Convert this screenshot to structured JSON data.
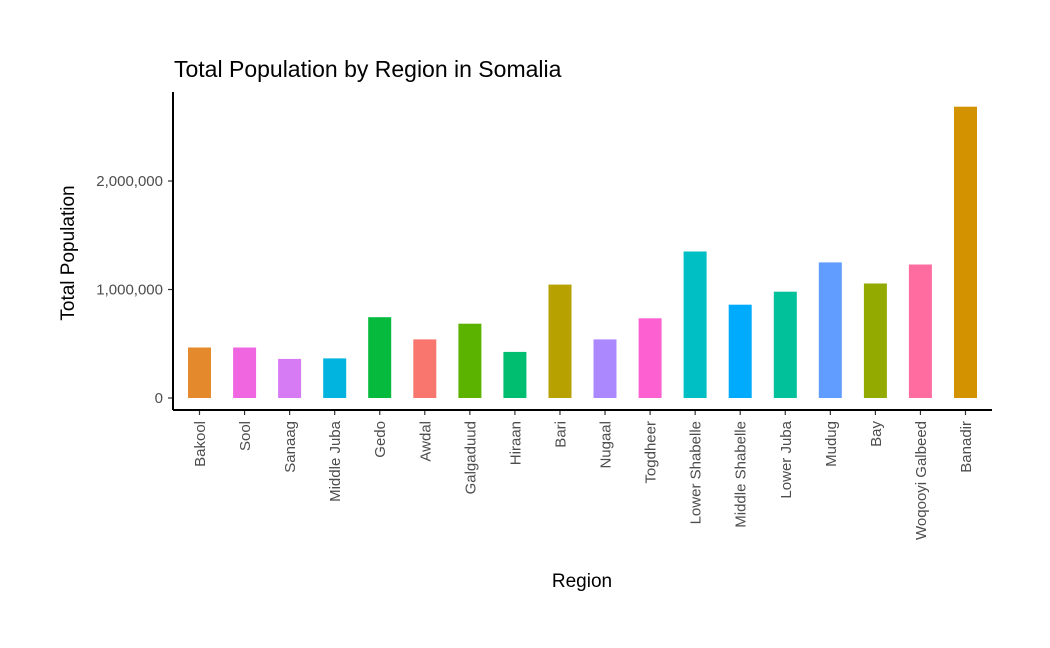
{
  "chart_data": {
    "type": "bar",
    "title": "Total Population by Region in Somalia",
    "xlabel": "Region",
    "ylabel": "Total Population",
    "ylim": [
      0,
      2800000
    ],
    "yticks": [
      0,
      1000000,
      2000000
    ],
    "ytick_labels": [
      "0",
      "1,000,000",
      "2,000,000"
    ],
    "grid": false,
    "legend": "none",
    "categories": [
      "Bakool",
      "Sool",
      "Sanaag",
      "Middle Juba",
      "Gedo",
      "Awdal",
      "Galgaduud",
      "Hiraan",
      "Bari",
      "Nugaal",
      "Togdheer",
      "Lower Shabelle",
      "Middle Shabelle",
      "Lower Juba",
      "Mudug",
      "Bay",
      "Woqooyi Galbeed",
      "Banadir"
    ],
    "values": [
      465000,
      465000,
      360000,
      365000,
      745000,
      540000,
      685000,
      425000,
      1045000,
      540000,
      735000,
      1350000,
      860000,
      980000,
      1250000,
      1055000,
      1230000,
      2685000
    ],
    "colors": [
      "#E58A2C",
      "#F066E0",
      "#D77BF5",
      "#00B4DF",
      "#06BA3E",
      "#F8766D",
      "#5BB300",
      "#00BE70",
      "#B7A100",
      "#AC88FF",
      "#FD61D1",
      "#00BFC4",
      "#00ABFD",
      "#00C19A",
      "#619CFF",
      "#93AA00",
      "#FF6C9F",
      "#D39200"
    ]
  }
}
